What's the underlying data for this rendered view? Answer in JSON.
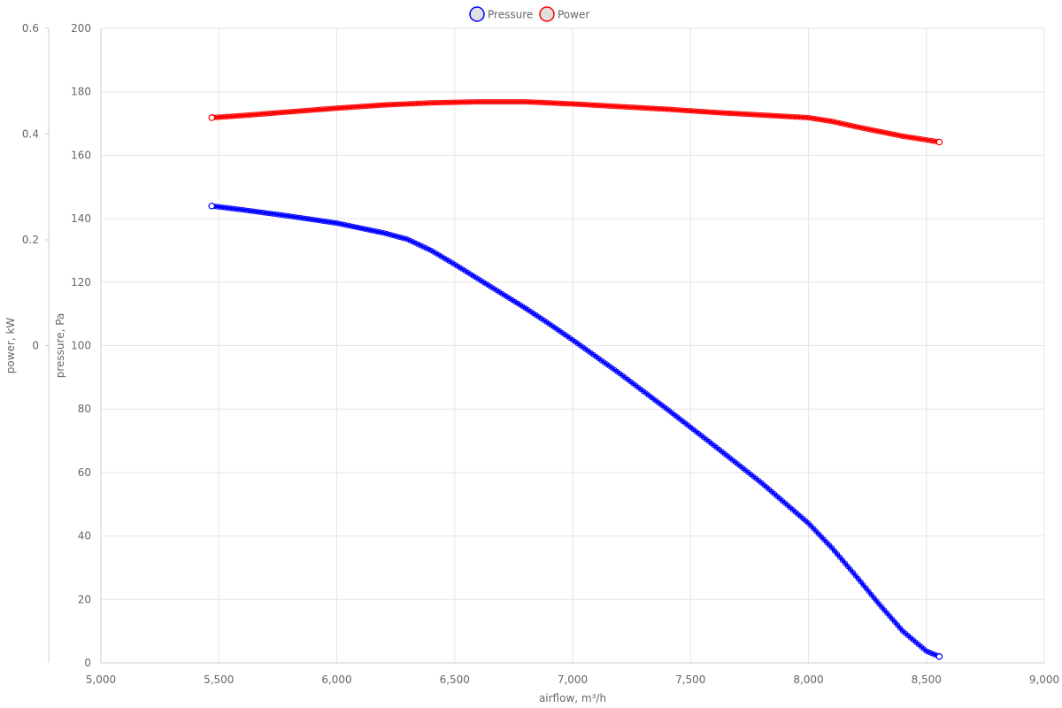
{
  "chart_data": {
    "type": "line",
    "xlabel": "airflow, m³/h",
    "xlim": [
      5000,
      9000
    ],
    "x_ticks": [
      5000,
      5500,
      6000,
      6500,
      7000,
      7500,
      8000,
      8500,
      9000
    ],
    "y_axes": [
      {
        "id": "pressure",
        "label": "pressure, Pa",
        "lim": [
          0,
          200
        ],
        "ticks": [
          0,
          20,
          40,
          60,
          80,
          100,
          120,
          140,
          160,
          180,
          200
        ]
      },
      {
        "id": "power",
        "label": "power, kW",
        "lim": [
          -0.6,
          0.6
        ],
        "ticks": [
          0,
          0.2,
          0.4,
          0.6
        ]
      }
    ],
    "grid": true,
    "legend_position": "top-center",
    "series": [
      {
        "name": "Pressure",
        "axis": "pressure",
        "color": "#0000ff",
        "points": [
          [
            5470,
            144
          ],
          [
            5600,
            142.8
          ],
          [
            5800,
            140.8
          ],
          [
            6000,
            138.6
          ],
          [
            6200,
            135.5
          ],
          [
            6300,
            133.5
          ],
          [
            6400,
            130
          ],
          [
            6500,
            125.6
          ],
          [
            6600,
            121
          ],
          [
            6700,
            116.4
          ],
          [
            6800,
            111.8
          ],
          [
            6900,
            106.9
          ],
          [
            7000,
            101.8
          ],
          [
            7200,
            91.2
          ],
          [
            7400,
            80
          ],
          [
            7600,
            68.5
          ],
          [
            7800,
            56.8
          ],
          [
            8000,
            44
          ],
          [
            8100,
            36.2
          ],
          [
            8200,
            27.5
          ],
          [
            8300,
            18.5
          ],
          [
            8400,
            10
          ],
          [
            8500,
            3.7
          ],
          [
            8555,
            2
          ]
        ]
      },
      {
        "name": "Power",
        "axis": "power",
        "color": "#ff0000",
        "points": [
          [
            5470,
            0.431
          ],
          [
            5600,
            0.435
          ],
          [
            5800,
            0.442
          ],
          [
            6000,
            0.449
          ],
          [
            6200,
            0.455
          ],
          [
            6400,
            0.459
          ],
          [
            6500,
            0.46
          ],
          [
            6600,
            0.461
          ],
          [
            6800,
            0.461
          ],
          [
            7000,
            0.457
          ],
          [
            7200,
            0.452
          ],
          [
            7400,
            0.447
          ],
          [
            7600,
            0.441
          ],
          [
            7800,
            0.436
          ],
          [
            8000,
            0.431
          ],
          [
            8100,
            0.424
          ],
          [
            8200,
            0.414
          ],
          [
            8300,
            0.405
          ],
          [
            8400,
            0.396
          ],
          [
            8500,
            0.389
          ],
          [
            8555,
            0.385
          ]
        ]
      }
    ]
  }
}
